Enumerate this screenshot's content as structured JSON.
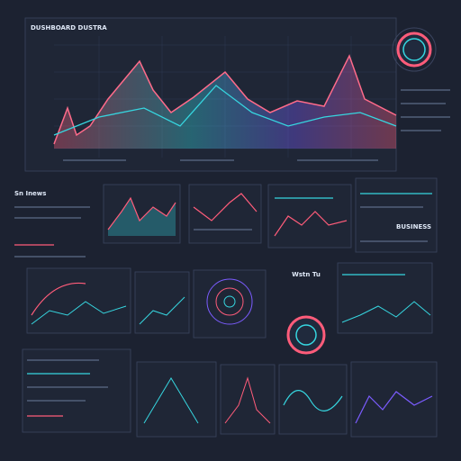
{
  "header": {
    "title": "DUSHBOARD DUSTRA"
  },
  "panels": [
    {
      "label": "Sn Inews"
    },
    {
      "label": "Wstn Tu"
    },
    {
      "label": "BUSINESS"
    }
  ]
}
